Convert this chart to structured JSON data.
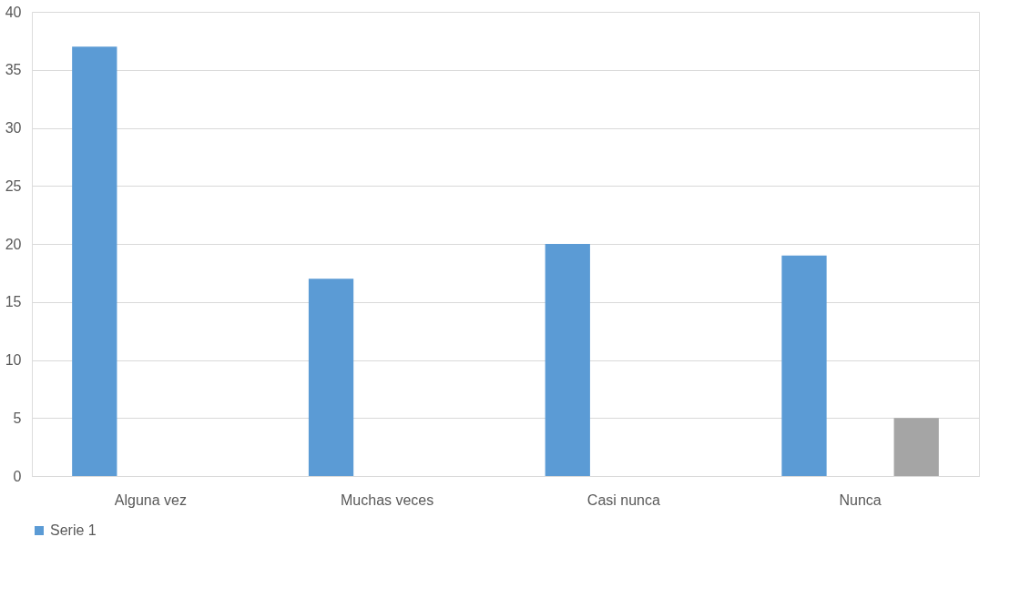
{
  "chart_data": {
    "type": "bar",
    "categories": [
      "Alguna vez",
      "Muchas veces",
      "Casi nunca",
      "Nunca"
    ],
    "series": [
      {
        "name": "Serie 1",
        "color": "#5b9bd5",
        "values": [
          37,
          17,
          20,
          19
        ]
      },
      {
        "color": "#ed7d31",
        "values": [
          null,
          null,
          null,
          null
        ]
      },
      {
        "color": "#a5a5a5",
        "values": [
          null,
          null,
          null,
          5
        ]
      }
    ],
    "ylim": [
      0,
      40
    ],
    "yticks": [
      0,
      5,
      10,
      15,
      20,
      25,
      30,
      35,
      40
    ],
    "grid": "y",
    "legend": "bottom"
  }
}
